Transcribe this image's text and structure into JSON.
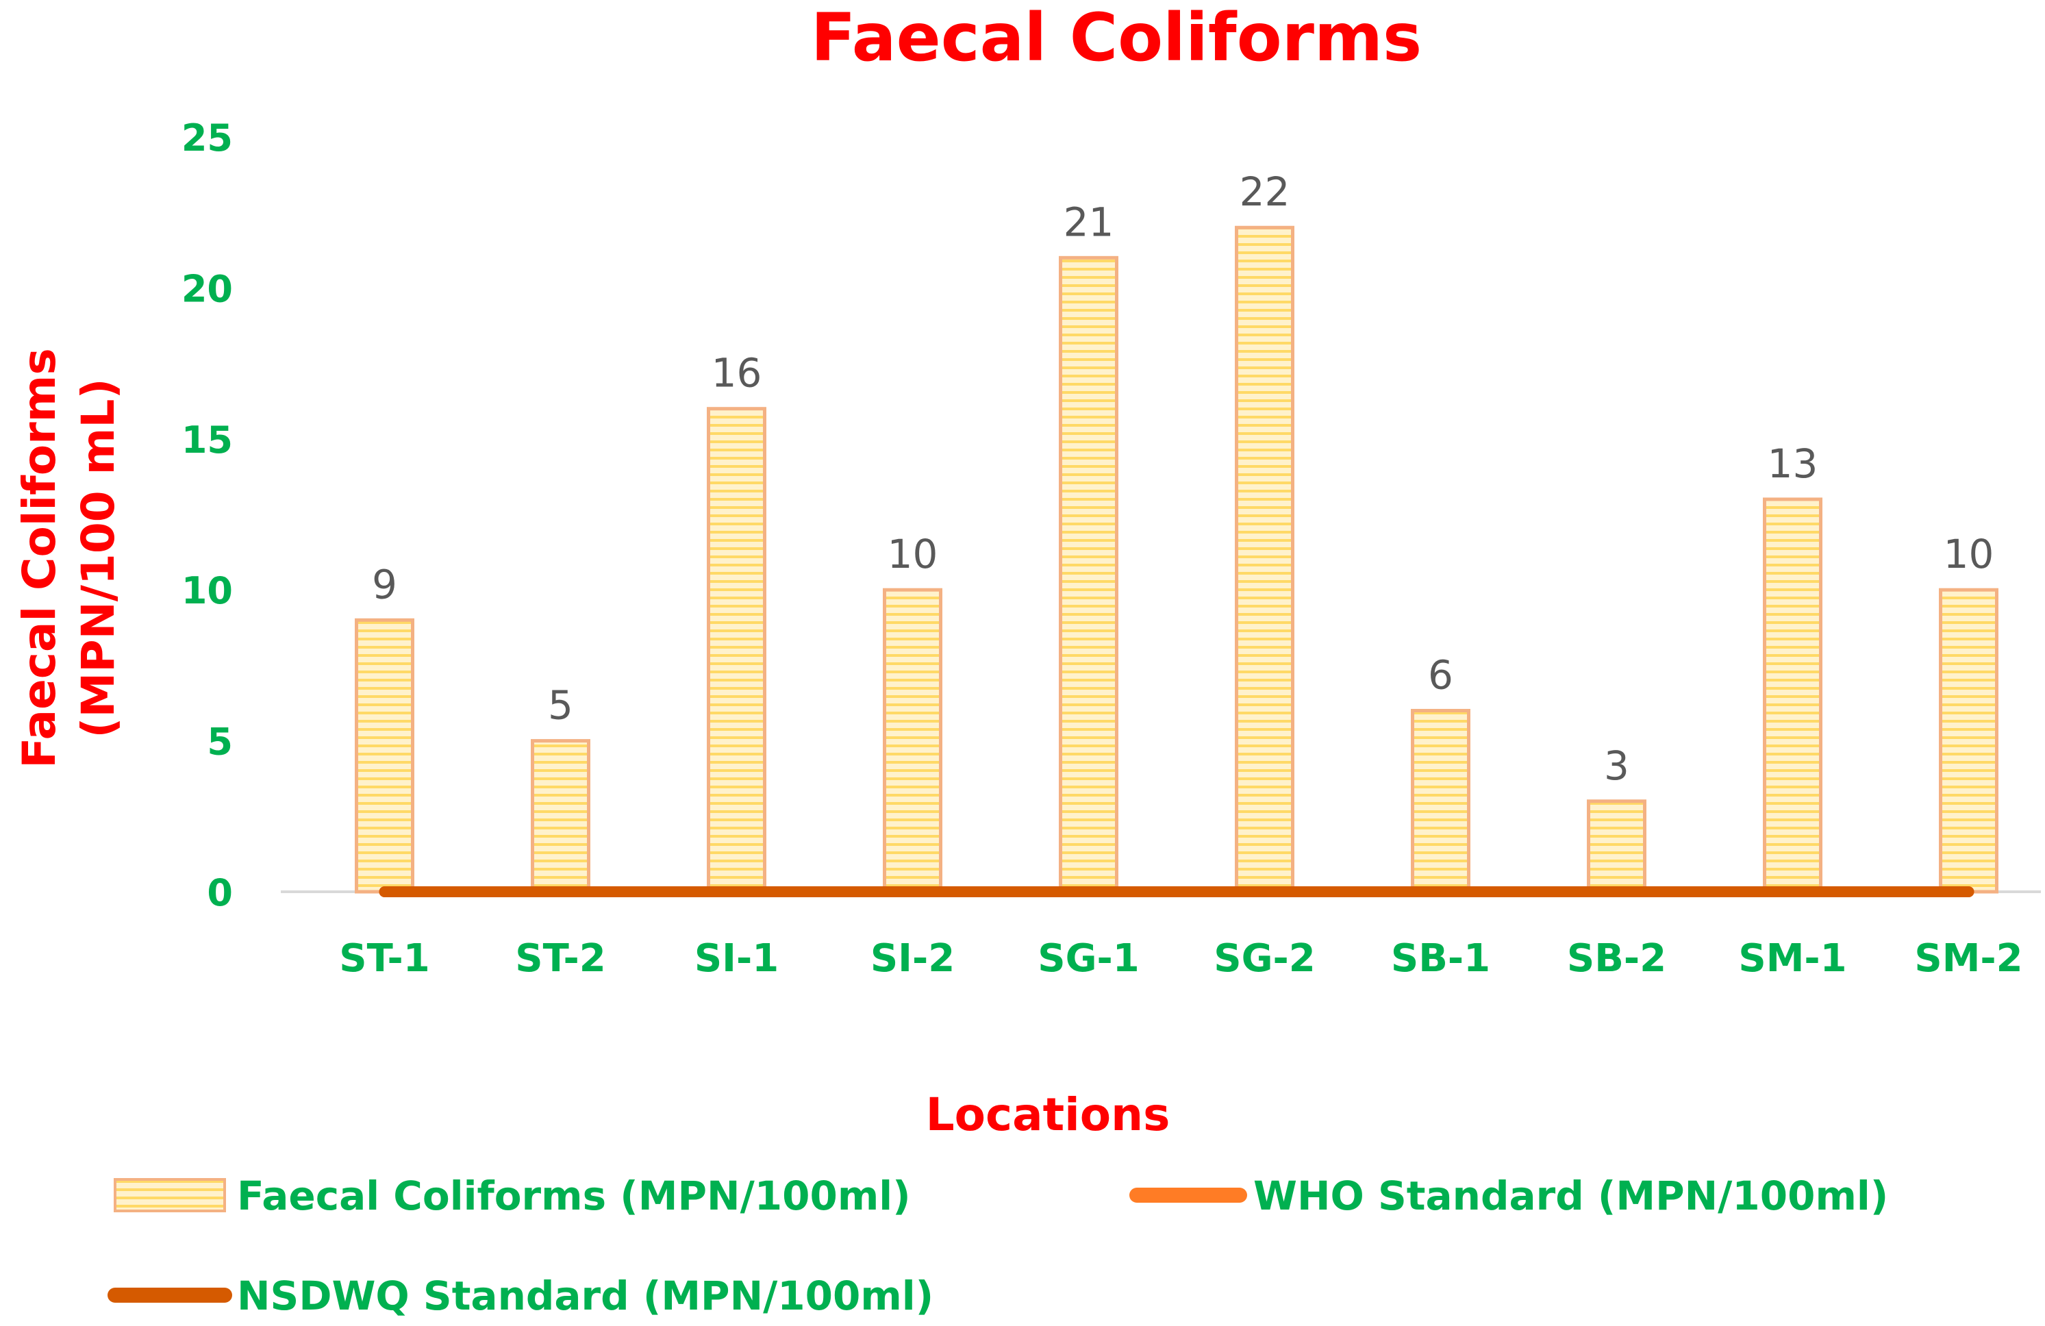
{
  "colors": {
    "title": "#ff0000",
    "axis_title": "#ff0000",
    "tick": "#00b050",
    "legend_text": "#00b050",
    "data_label": "#595959",
    "bar_fill": "#fff2cc",
    "bar_stripe": "#ffd966",
    "bar_border": "#f4b183",
    "who_line": "#ff7c25",
    "nsdwq_line": "#d55a00",
    "axis_line": "#d9d9d9"
  },
  "chart_data": {
    "type": "bar",
    "title": "Faecal Coliforms",
    "xlabel": "Locations",
    "ylabel_lines": [
      "Faecal Coliforms",
      "(MPN/100 mL)"
    ],
    "categories": [
      "ST-1",
      "ST-2",
      "SI-1",
      "SI-2",
      "SG-1",
      "SG-2",
      "SB-1",
      "SB-2",
      "SM-1",
      "SM-2"
    ],
    "yticks": [
      0,
      5,
      10,
      15,
      20,
      25
    ],
    "ylim": [
      0,
      25
    ],
    "grid": false,
    "legend_position": "bottom",
    "series": [
      {
        "name": "Faecal Coliforms (MPN/100ml)",
        "type": "bar",
        "values": [
          9,
          5,
          16,
          10,
          21,
          22,
          6,
          3,
          13,
          10
        ]
      },
      {
        "name": "WHO Standard (MPN/100ml)",
        "type": "line",
        "values": [
          0,
          0,
          0,
          0,
          0,
          0,
          0,
          0,
          0,
          0
        ]
      },
      {
        "name": "NSDWQ Standard (MPN/100ml)",
        "type": "line",
        "values": [
          0,
          0,
          0,
          0,
          0,
          0,
          0,
          0,
          0,
          0
        ]
      }
    ]
  }
}
